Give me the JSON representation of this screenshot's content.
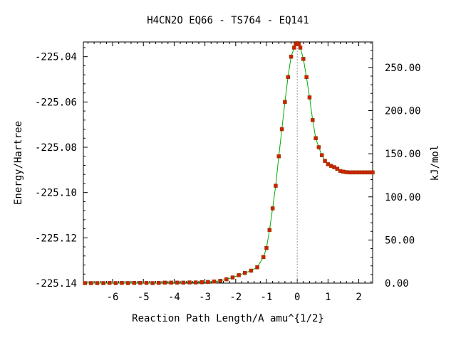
{
  "chart_data": {
    "type": "line",
    "title": "H4CN2O   EQ66 - TS764 - EQ141",
    "xlabel": "Reaction Path Length/A amu^{1/2}",
    "ylabel": "Energy/Hartree",
    "y2label": "kJ/mol",
    "xlim": [
      -6.95,
      2.45
    ],
    "ylim": [
      -225.14,
      -225.0335
    ],
    "y2lim": [
      0,
      279.6
    ],
    "x_ticks": [
      -6,
      -5,
      -4,
      -3,
      -2,
      -1,
      0,
      1,
      2
    ],
    "x_tick_labels": [
      "-6",
      "-5",
      "-4",
      "-3",
      "-2",
      "-1",
      "0",
      "1",
      "2"
    ],
    "y_ticks": [
      -225.04,
      -225.06,
      -225.08,
      -225.1,
      -225.12,
      -225.14
    ],
    "y_tick_labels": [
      "-225.04",
      "-225.06",
      "-225.08",
      "-225.10",
      "-225.12",
      "-225.14"
    ],
    "y2_ticks": [
      250,
      200,
      150,
      100,
      50,
      0
    ],
    "y2_tick_labels": [
      "250.00",
      "200.00",
      "150.00",
      "100.00",
      "50.00",
      "0.00"
    ],
    "ts_marker_x": 0,
    "grid": false,
    "legend": "none",
    "colors": {
      "line": "#00aa00",
      "marker": "#cc2200",
      "ts_line": "#999999",
      "axis": "#000000"
    },
    "series": [
      {
        "x": [
          -6.9,
          -6.7,
          -6.5,
          -6.3,
          -6.1,
          -5.9,
          -5.7,
          -5.5,
          -5.3,
          -5.1,
          -4.9,
          -4.7,
          -4.5,
          -4.3,
          -4.1,
          -3.9,
          -3.7,
          -3.5,
          -3.3,
          -3.1,
          -2.9,
          -2.7,
          -2.5,
          -2.3,
          -2.1,
          -1.9,
          -1.7,
          -1.5,
          -1.3,
          -1.1,
          -1.0,
          -0.9,
          -0.8,
          -0.7,
          -0.6,
          -0.5,
          -0.4,
          -0.3,
          -0.2,
          -0.1,
          -0.05,
          0.0,
          0.05,
          0.1,
          0.2,
          0.3,
          0.4,
          0.5,
          0.6,
          0.7,
          0.8,
          0.9,
          1.0,
          1.1,
          1.2,
          1.3,
          1.4,
          1.5,
          1.6,
          1.7,
          1.8,
          1.9,
          2.0,
          2.1,
          2.2,
          2.3,
          2.4,
          2.45
        ],
        "y": [
          -225.14,
          -225.14,
          -225.14,
          -225.14,
          -225.1399,
          -225.14,
          -225.1399,
          -225.14,
          -225.1399,
          -225.1399,
          -225.1399,
          -225.14,
          -225.1399,
          -225.1398,
          -225.1398,
          -225.1398,
          -225.1398,
          -225.1397,
          -225.1397,
          -225.1396,
          -225.1395,
          -225.1393,
          -225.139,
          -225.1383,
          -225.1375,
          -225.1365,
          -225.1355,
          -225.1345,
          -225.133,
          -225.1285,
          -225.1245,
          -225.1165,
          -225.107,
          -225.097,
          -225.084,
          -225.072,
          -225.06,
          -225.049,
          -225.04,
          -225.036,
          -225.0345,
          -225.034,
          -225.0345,
          -225.036,
          -225.041,
          -225.049,
          -225.058,
          -225.068,
          -225.076,
          -225.08,
          -225.0835,
          -225.086,
          -225.0875,
          -225.0882,
          -225.0888,
          -225.0895,
          -225.0905,
          -225.0908,
          -225.091,
          -225.0911,
          -225.0911,
          -225.0911,
          -225.0911,
          -225.0911,
          -225.0911,
          -225.0911,
          -225.0911,
          -225.0911
        ]
      }
    ]
  }
}
